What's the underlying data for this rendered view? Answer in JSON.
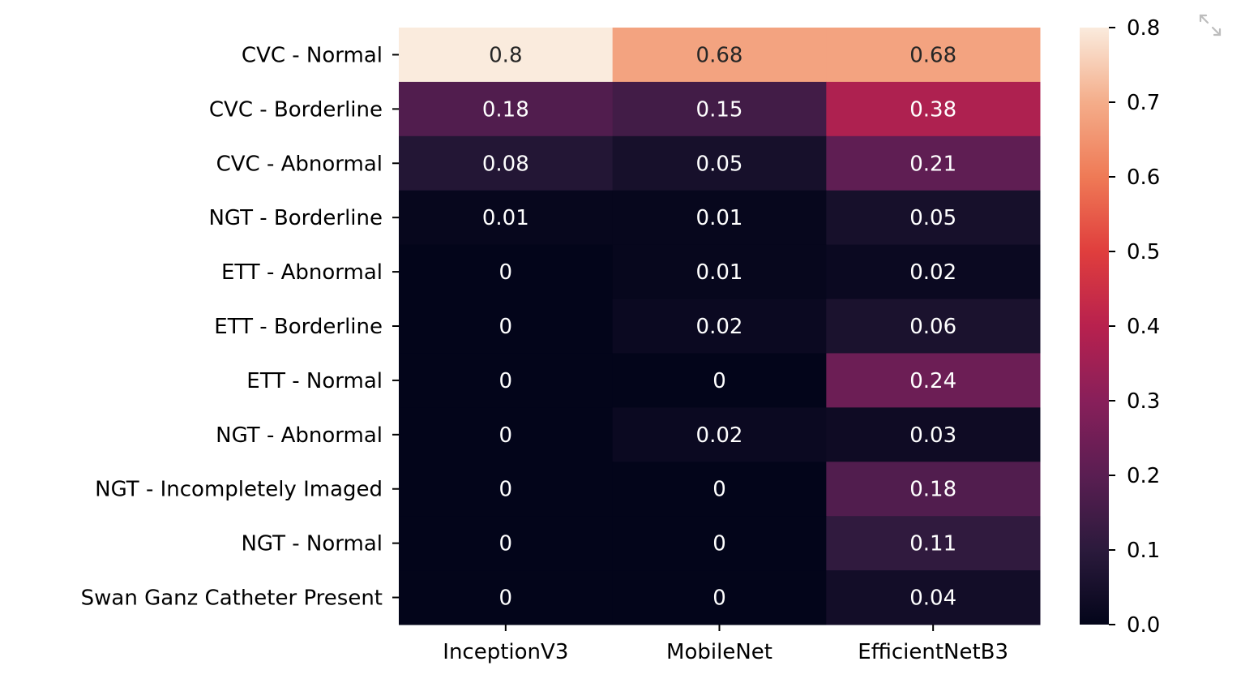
{
  "chart_data": {
    "type": "heatmap",
    "title": "",
    "xlabel": "",
    "ylabel": "",
    "x_categories": [
      "InceptionV3",
      "MobileNet",
      "EfficientNetB3"
    ],
    "y_categories": [
      "CVC - Normal",
      "CVC - Borderline",
      "CVC - Abnormal",
      "NGT - Borderline",
      "ETT - Abnormal",
      "ETT - Borderline",
      "ETT - Normal",
      "NGT - Abnormal",
      "NGT - Incompletely Imaged",
      "NGT - Normal",
      "Swan Ganz Catheter Present"
    ],
    "values": [
      [
        0.8,
        0.68,
        0.68
      ],
      [
        0.18,
        0.15,
        0.38
      ],
      [
        0.08,
        0.05,
        0.21
      ],
      [
        0.01,
        0.01,
        0.05
      ],
      [
        0,
        0.01,
        0.02
      ],
      [
        0,
        0.02,
        0.06
      ],
      [
        0,
        0,
        0.24
      ],
      [
        0,
        0.02,
        0.03
      ],
      [
        0,
        0,
        0.18
      ],
      [
        0,
        0,
        0.11
      ],
      [
        0,
        0,
        0.04
      ]
    ],
    "value_labels": [
      [
        "0.8",
        "0.68",
        "0.68"
      ],
      [
        "0.18",
        "0.15",
        "0.38"
      ],
      [
        "0.08",
        "0.05",
        "0.21"
      ],
      [
        "0.01",
        "0.01",
        "0.05"
      ],
      [
        "0",
        "0.01",
        "0.02"
      ],
      [
        "0",
        "0.02",
        "0.06"
      ],
      [
        "0",
        "0",
        "0.24"
      ],
      [
        "0",
        "0.02",
        "0.03"
      ],
      [
        "0",
        "0",
        "0.18"
      ],
      [
        "0",
        "0",
        "0.11"
      ],
      [
        "0",
        "0",
        "0.04"
      ]
    ],
    "colorbar": {
      "range": [
        0.0,
        0.8
      ],
      "ticks": [
        0.0,
        0.1,
        0.2,
        0.3,
        0.4,
        0.5,
        0.6,
        0.7,
        0.8
      ],
      "tick_labels": [
        "0.0",
        "0.1",
        "0.2",
        "0.3",
        "0.4",
        "0.5",
        "0.6",
        "0.7",
        "0.8"
      ],
      "colormap": "rocket",
      "stops": [
        "#03051a",
        "#2b1a3c",
        "#5a1e52",
        "#881f5a",
        "#b8214e",
        "#e03e3d",
        "#ef7a56",
        "#f4ad8a",
        "#faebdd"
      ]
    },
    "grid": false,
    "legend": "none"
  },
  "icons": {
    "expand": "expand-icon"
  }
}
